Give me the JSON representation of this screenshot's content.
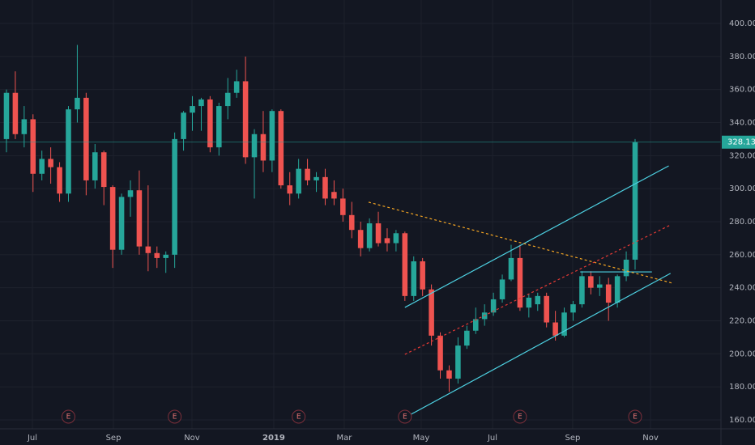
{
  "chart_data": {
    "type": "candlestick",
    "up_color": "#26a69a",
    "down_color": "#ef5350",
    "open": [
      330,
      358,
      333,
      342,
      309,
      318,
      313,
      297,
      348,
      355,
      305,
      322,
      301,
      263,
      295,
      299,
      265,
      261,
      258,
      260,
      330,
      346,
      350,
      354,
      325,
      350,
      358,
      365,
      319,
      333,
      317,
      347,
      302,
      297,
      312,
      305,
      307,
      298,
      294,
      284,
      275,
      264,
      279,
      270,
      267,
      273,
      235,
      256,
      239,
      211,
      190,
      185,
      205,
      214,
      221,
      225,
      233,
      245,
      258,
      228,
      230,
      235,
      219,
      211,
      225,
      230,
      247,
      240,
      242,
      231,
      247,
      257
    ],
    "high": [
      360,
      371,
      350,
      345,
      323,
      325,
      316,
      350,
      387,
      358,
      327,
      323,
      302,
      297,
      305,
      311,
      302,
      265,
      262,
      334,
      347,
      356,
      355,
      356,
      352,
      367,
      372,
      380,
      336,
      347,
      348,
      348,
      310,
      318,
      318,
      310,
      312,
      305,
      300,
      292,
      280,
      282,
      286,
      276,
      275,
      274,
      259,
      258,
      242,
      213,
      193,
      210,
      217,
      228,
      230,
      237,
      248,
      266,
      266,
      236,
      237,
      237,
      226,
      228,
      232,
      250,
      250,
      247,
      246,
      248,
      262,
      330
    ],
    "low": [
      322,
      330,
      325,
      298,
      305,
      303,
      292,
      292,
      340,
      296,
      300,
      290,
      252,
      260,
      283,
      260,
      250,
      252,
      249,
      252,
      323,
      335,
      335,
      322,
      320,
      342,
      355,
      315,
      294,
      310,
      310,
      300,
      290,
      294,
      302,
      298,
      290,
      290,
      280,
      270,
      259,
      262,
      265,
      262,
      262,
      232,
      232,
      235,
      205,
      185,
      177,
      182,
      203,
      212,
      217,
      223,
      231,
      244,
      226,
      222,
      226,
      216,
      208,
      210,
      220,
      228,
      236,
      235,
      220,
      228,
      244,
      251
    ],
    "close": [
      358,
      333,
      342,
      309,
      318,
      313,
      297,
      348,
      355,
      305,
      322,
      301,
      263,
      295,
      299,
      265,
      261,
      258,
      260,
      330,
      346,
      350,
      354,
      325,
      350,
      358,
      365,
      319,
      333,
      317,
      347,
      302,
      297,
      312,
      305,
      307,
      294,
      294,
      284,
      275,
      264,
      279,
      267,
      267,
      273,
      235,
      256,
      239,
      211,
      190,
      185,
      205,
      214,
      221,
      225,
      233,
      245,
      258,
      228,
      234,
      235,
      219,
      211,
      225,
      230,
      247,
      240,
      242,
      231,
      247,
      257,
      328.13
    ],
    "last_color": "#26a69a",
    "xlim": [
      -0.73,
      80.7
    ],
    "ylim": [
      154.6,
      414.2
    ],
    "yticks": [
      {
        "value": 160,
        "label": "160.00"
      },
      {
        "value": 180,
        "label": "180.00"
      },
      {
        "value": 200,
        "label": "200.00"
      },
      {
        "value": 220,
        "label": "220.00"
      },
      {
        "value": 240,
        "label": "240.00"
      },
      {
        "value": 260,
        "label": "260.00"
      },
      {
        "value": 280,
        "label": "280.00"
      },
      {
        "value": 300,
        "label": "300.00"
      },
      {
        "value": 320,
        "label": "320.00"
      },
      {
        "value": 340,
        "label": "340.00"
      },
      {
        "value": 360,
        "label": "360.00"
      },
      {
        "value": 380,
        "label": "380.00"
      },
      {
        "value": 400,
        "label": "400.00"
      }
    ],
    "xticks": [
      {
        "value": 2.93,
        "label": "Jul"
      },
      {
        "value": 12.08,
        "label": "Sep"
      },
      {
        "value": 20.95,
        "label": "Nov"
      },
      {
        "value": 30.19,
        "label": "2019"
      },
      {
        "value": 38.15,
        "label": "Mar"
      },
      {
        "value": 46.84,
        "label": "May"
      },
      {
        "value": 54.9,
        "label": "Jul"
      },
      {
        "value": 63.95,
        "label": "Sep"
      },
      {
        "value": 72.74,
        "label": "Nov"
      }
    ],
    "grid": true,
    "events": [
      {
        "index": 7,
        "label": "E"
      },
      {
        "index": 19,
        "label": "E"
      },
      {
        "index": 33,
        "label": "E"
      },
      {
        "index": 45,
        "label": "E"
      },
      {
        "index": 58,
        "label": "E"
      },
      {
        "index": 71,
        "label": "E"
      }
    ],
    "drawings": [
      {
        "color": "#4dd0e1",
        "dashed": false,
        "points": [
          [
            45.0,
            228.1
          ],
          [
            74.8,
            313.8
          ]
        ]
      },
      {
        "color": "#4dd0e1",
        "dashed": false,
        "points": [
          [
            45.7,
            163.4
          ],
          [
            75.0,
            248.7
          ]
        ]
      },
      {
        "color": "#4dd0e1",
        "dashed": false,
        "points": [
          [
            64.8,
            249.6
          ],
          [
            72.9,
            249.6
          ]
        ]
      },
      {
        "color": "#f5a623",
        "dashed": true,
        "points": [
          [
            40.9,
            291.8
          ],
          [
            75.2,
            242.8
          ]
        ]
      },
      {
        "color": "#e53935",
        "dashed": true,
        "points": [
          [
            45.0,
            199.7
          ],
          [
            75.0,
            278.0
          ]
        ]
      }
    ]
  }
}
